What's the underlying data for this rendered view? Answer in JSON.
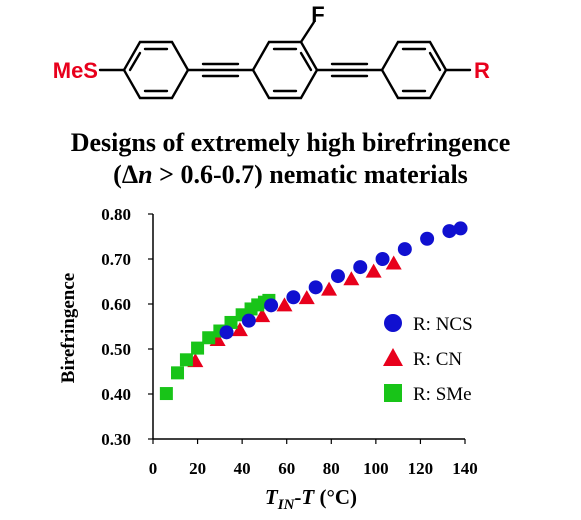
{
  "structure": {
    "left_substituent": "MeS",
    "fluoro_label": "F",
    "right_substituent": "R",
    "substituent_color": "#e8001c"
  },
  "headline": {
    "line1": "Designs of  extremely high birefringence",
    "line2_prefix": "(",
    "line2_delta": "Δ",
    "line2_n": "n",
    "line2_suffix": " > 0.6-0.7) nematic materials"
  },
  "chart_data": {
    "type": "scatter",
    "title": "",
    "xlabel_T": "T",
    "xlabel_sub": "IN",
    "xlabel_rest": "-",
    "xlabel_T2": "T",
    "xlabel_unit": " (°C)",
    "ylabel": "Birefringence",
    "xlim": [
      0,
      140
    ],
    "ylim": [
      0.3,
      0.8
    ],
    "x_ticks": [
      "0",
      "20",
      "40",
      "60",
      "80",
      "100",
      "120",
      "140"
    ],
    "y_ticks": [
      "0.30",
      "0.40",
      "0.50",
      "0.60",
      "0.70",
      "0.80"
    ],
    "grid": false,
    "legend_position": "right-middle",
    "series": [
      {
        "name": "R: NCS",
        "marker": "circle",
        "color": "#1010d0",
        "x": [
          33,
          43,
          53,
          63,
          73,
          83,
          93,
          103,
          113,
          123,
          133,
          138
        ],
        "y": [
          0.537,
          0.563,
          0.597,
          0.615,
          0.637,
          0.662,
          0.682,
          0.7,
          0.722,
          0.745,
          0.762,
          0.768
        ]
      },
      {
        "name": "R: CN",
        "marker": "triangle",
        "color": "#e8001c",
        "x": [
          19,
          29,
          39,
          49,
          59,
          69,
          79,
          89,
          99,
          108
        ],
        "y": [
          0.473,
          0.52,
          0.542,
          0.573,
          0.597,
          0.613,
          0.632,
          0.655,
          0.672,
          0.69
        ]
      },
      {
        "name": "R: SMe",
        "marker": "square",
        "color": "#18c418",
        "x": [
          6,
          11,
          15,
          20,
          25,
          30,
          35,
          40,
          44,
          47,
          50,
          52
        ],
        "y": [
          0.401,
          0.447,
          0.476,
          0.502,
          0.525,
          0.54,
          0.559,
          0.576,
          0.589,
          0.598,
          0.604,
          0.608
        ]
      }
    ]
  }
}
